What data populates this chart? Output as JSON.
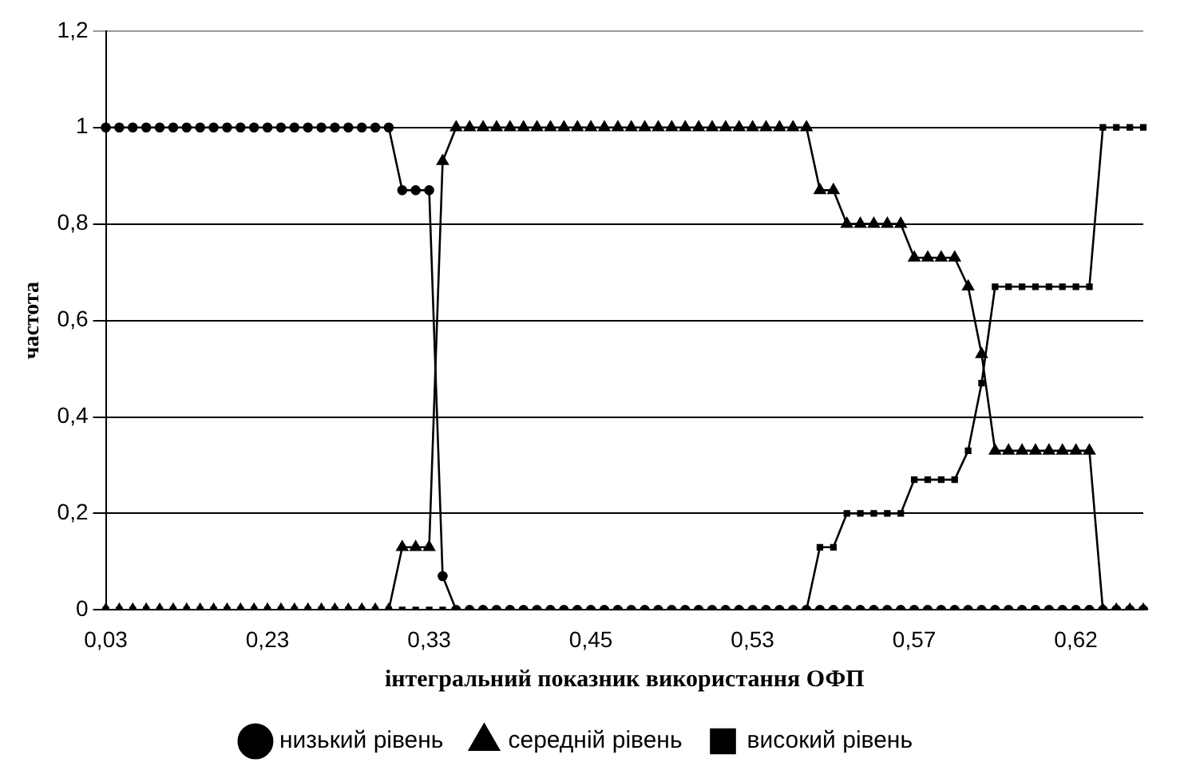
{
  "chart_data": {
    "type": "line",
    "xlabel": "інтегральний показник використання ОФП",
    "ylabel": "частота",
    "categories": [
      "0,03",
      null,
      null,
      null,
      null,
      null,
      null,
      null,
      null,
      null,
      null,
      null,
      "0,23",
      null,
      null,
      null,
      null,
      null,
      null,
      null,
      null,
      null,
      null,
      null,
      "0,33",
      null,
      null,
      null,
      null,
      null,
      null,
      null,
      null,
      null,
      null,
      null,
      "0,45",
      null,
      null,
      null,
      null,
      null,
      null,
      null,
      null,
      null,
      null,
      null,
      "0,53",
      null,
      null,
      null,
      null,
      null,
      null,
      null,
      null,
      null,
      null,
      null,
      "0,57",
      null,
      null,
      null,
      null,
      null,
      null,
      null,
      null,
      null,
      null,
      null,
      "0,62",
      null,
      null,
      null,
      null,
      null
    ],
    "series": [
      {
        "name": "низький рівень",
        "color": "#000000",
        "marker": "circle",
        "values": [
          1,
          1,
          1,
          1,
          1,
          1,
          1,
          1,
          1,
          1,
          1,
          1,
          1,
          1,
          1,
          1,
          1,
          1,
          1,
          1,
          1,
          1,
          0.87,
          0.87,
          0.87,
          0.07,
          0,
          0,
          0,
          0,
          0,
          0,
          0,
          0,
          0,
          0,
          0,
          0,
          0,
          0,
          0,
          0,
          0,
          0,
          0,
          0,
          0,
          0,
          0,
          0,
          0,
          0,
          0,
          0,
          0,
          0,
          0,
          0,
          0,
          0,
          0,
          0,
          0,
          0,
          0,
          0,
          0,
          0,
          0,
          0,
          0,
          0,
          0,
          0,
          0,
          0,
          0,
          0
        ]
      },
      {
        "name": "середній рівень",
        "color": "#000000",
        "marker": "triangle",
        "values": [
          0,
          0,
          0,
          0,
          0,
          0,
          0,
          0,
          0,
          0,
          0,
          0,
          0,
          0,
          0,
          0,
          0,
          0,
          0,
          0,
          0,
          0,
          0.13,
          0.13,
          0.13,
          0.93,
          1,
          1,
          1,
          1,
          1,
          1,
          1,
          1,
          1,
          1,
          1,
          1,
          1,
          1,
          1,
          1,
          1,
          1,
          1,
          1,
          1,
          1,
          1,
          1,
          1,
          1,
          1,
          0.87,
          0.87,
          0.8,
          0.8,
          0.8,
          0.8,
          0.8,
          0.73,
          0.73,
          0.73,
          0.73,
          0.67,
          0.53,
          0.33,
          0.33,
          0.33,
          0.33,
          0.33,
          0.33,
          0.33,
          0.33,
          0,
          0,
          0,
          0
        ]
      },
      {
        "name": "високий рівень",
        "color": "#000000",
        "marker": "square",
        "values": [
          0,
          0,
          0,
          0,
          0,
          0,
          0,
          0,
          0,
          0,
          0,
          0,
          0,
          0,
          0,
          0,
          0,
          0,
          0,
          0,
          0,
          0,
          0,
          0,
          0,
          0,
          0,
          0,
          0,
          0,
          0,
          0,
          0,
          0,
          0,
          0,
          0,
          0,
          0,
          0,
          0,
          0,
          0,
          0,
          0,
          0,
          0,
          0,
          0,
          0,
          0,
          0,
          0,
          0.13,
          0.13,
          0.2,
          0.2,
          0.2,
          0.2,
          0.2,
          0.27,
          0.27,
          0.27,
          0.27,
          0.33,
          0.47,
          0.67,
          0.67,
          0.67,
          0.67,
          0.67,
          0.67,
          0.67,
          0.67,
          1,
          1,
          1,
          1
        ]
      }
    ],
    "ylim": [
      0,
      1.2
    ],
    "yticks": [
      0,
      {
        "value": 0.2,
        "label": "0,2"
      },
      {
        "value": 0.4,
        "label": "0,4"
      },
      {
        "value": 0.6,
        "label": "0,6"
      },
      {
        "value": 0.8,
        "label": "0,8"
      },
      1,
      {
        "value": 1.2,
        "label": "1,2"
      }
    ],
    "grid": "y",
    "legend": "bottom"
  }
}
